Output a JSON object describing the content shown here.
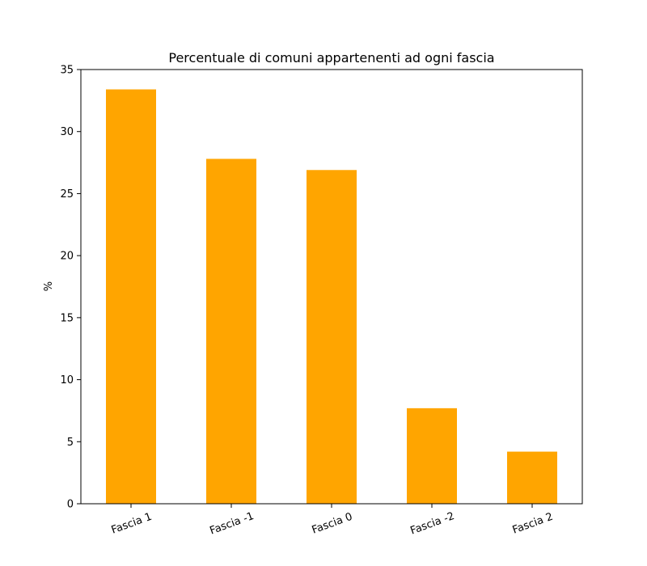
{
  "chart_data": {
    "type": "bar",
    "title": "Percentuale di comuni appartenenti ad ogni fascia",
    "xlabel": "",
    "ylabel": "%",
    "categories": [
      "Fascia 1",
      "Fascia -1",
      "Fascia 0",
      "Fascia -2",
      "Fascia 2"
    ],
    "values": [
      33.4,
      27.8,
      26.9,
      7.7,
      4.2
    ],
    "ylim": [
      0,
      35
    ],
    "yticks": [
      0,
      5,
      10,
      15,
      20,
      25,
      30,
      35
    ],
    "bar_color": "#ffa500",
    "grid": false,
    "legend": "none"
  }
}
